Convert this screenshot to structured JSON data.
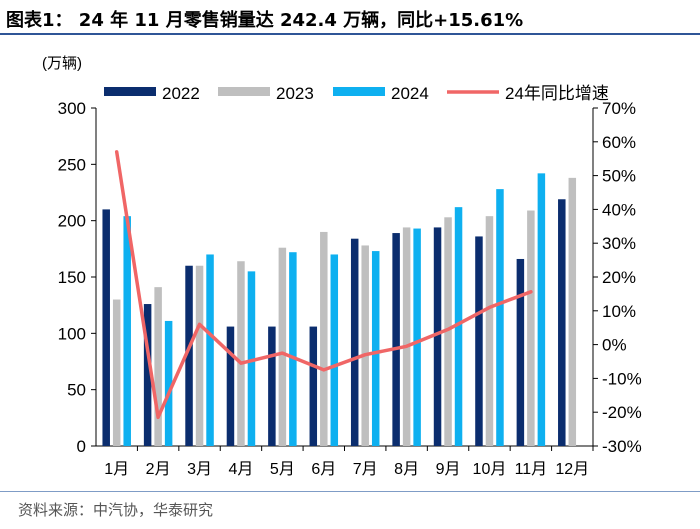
{
  "title": "图表1：  24 年 11 月零售销量达 242.4 万辆，同比+15.61%",
  "source": "资料来源：中汽协，华泰研究",
  "colors": {
    "s2022": "#0b2d6e",
    "s2023": "#bfbfbf",
    "s2024": "#0eb0f0",
    "growth": "#f06666",
    "rule": "#2f5597"
  },
  "chart_data": {
    "type": "bar",
    "categories": [
      "1月",
      "2月",
      "3月",
      "4月",
      "5月",
      "6月",
      "7月",
      "8月",
      "9月",
      "10月",
      "11月",
      "12月"
    ],
    "ylabel": "(万辆)",
    "ylim": [
      0,
      300
    ],
    "yticks": [
      "0",
      "50",
      "100",
      "150",
      "200",
      "250",
      "300"
    ],
    "y2lim": [
      -30,
      70
    ],
    "y2ticks": [
      "-30%",
      "-20%",
      "-10%",
      "0%",
      "10%",
      "20%",
      "30%",
      "40%",
      "50%",
      "60%",
      "70%"
    ],
    "series": [
      {
        "name": "2022",
        "values": [
          210,
          126,
          160,
          106,
          106,
          106,
          184,
          189,
          194,
          186,
          166,
          219
        ]
      },
      {
        "name": "2023",
        "values": [
          130,
          141,
          160,
          164,
          176,
          190,
          178,
          194,
          203,
          204,
          209,
          238
        ]
      },
      {
        "name": "2024",
        "values": [
          204,
          111,
          170,
          155,
          172,
          170,
          173,
          193,
          212,
          228,
          242,
          null
        ]
      }
    ],
    "line": {
      "name": "24年同比增速",
      "axis": "right",
      "values": [
        57,
        -21.5,
        6,
        -5.5,
        -2.5,
        -7.5,
        -3,
        -0.5,
        4.5,
        11,
        15.61,
        null
      ]
    }
  }
}
